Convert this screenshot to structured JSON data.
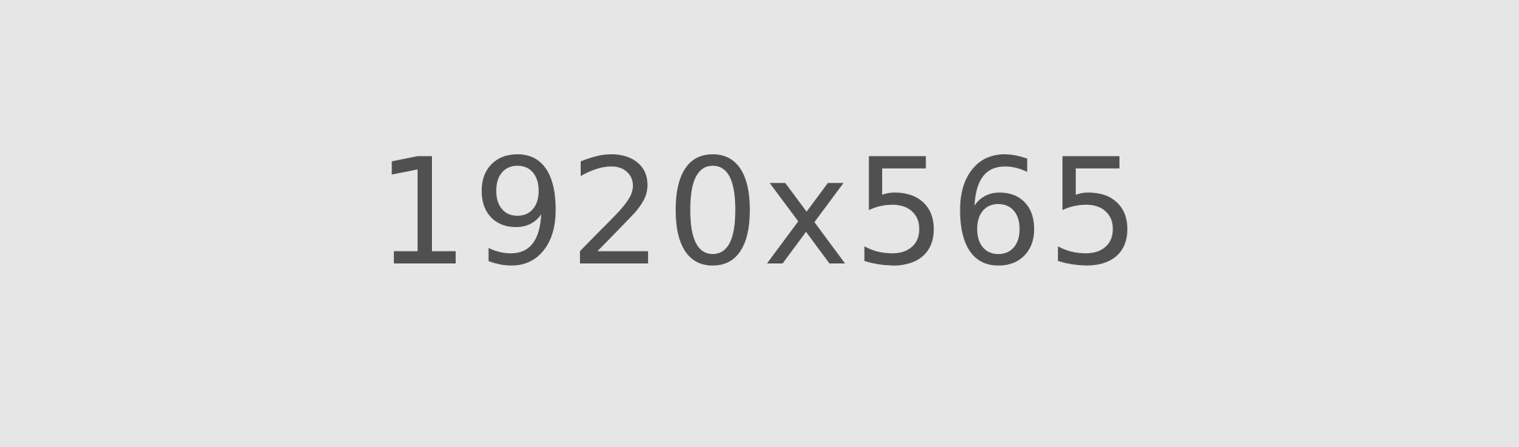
{
  "placeholder": {
    "text": "1920x565",
    "background_color": "#e6e6e6",
    "text_color": "#505050"
  }
}
